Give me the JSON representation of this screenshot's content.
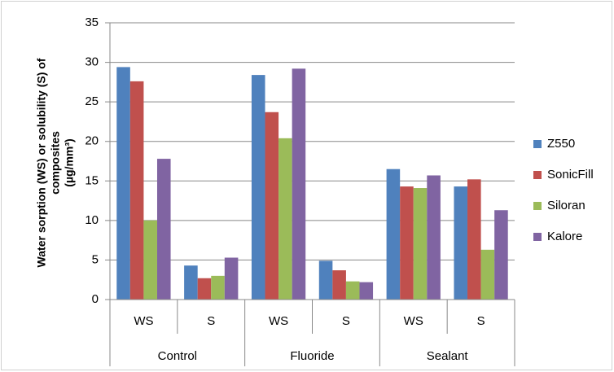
{
  "chart_data": {
    "type": "bar",
    "ylabel": [
      "Water sorption (WS) or solubility (S) of",
      "composites",
      "(µg/mm³)"
    ],
    "categories": [
      "WS",
      "S",
      "WS",
      "S",
      "WS",
      "S"
    ],
    "groups": [
      "Control",
      "Fluoride",
      "Sealant"
    ],
    "series": [
      {
        "name": "Z550",
        "color": "#4f81bd",
        "values": [
          29.4,
          4.3,
          28.4,
          4.9,
          16.5,
          14.3
        ]
      },
      {
        "name": "SonicFill",
        "color": "#c0504d",
        "values": [
          27.6,
          2.7,
          23.7,
          3.7,
          14.3,
          15.2
        ]
      },
      {
        "name": "Siloran",
        "color": "#9bbb59",
        "values": [
          10,
          3.0,
          20.4,
          2.3,
          14.1,
          6.3
        ]
      },
      {
        "name": "Kalore",
        "color": "#8064a2",
        "values": [
          17.8,
          5.3,
          29.2,
          2.2,
          15.7,
          11.3
        ]
      }
    ],
    "ylim": [
      0,
      35
    ],
    "yticks": [
      0,
      5,
      10,
      15,
      20,
      25,
      30,
      35
    ],
    "grid": true,
    "legend": "right"
  }
}
